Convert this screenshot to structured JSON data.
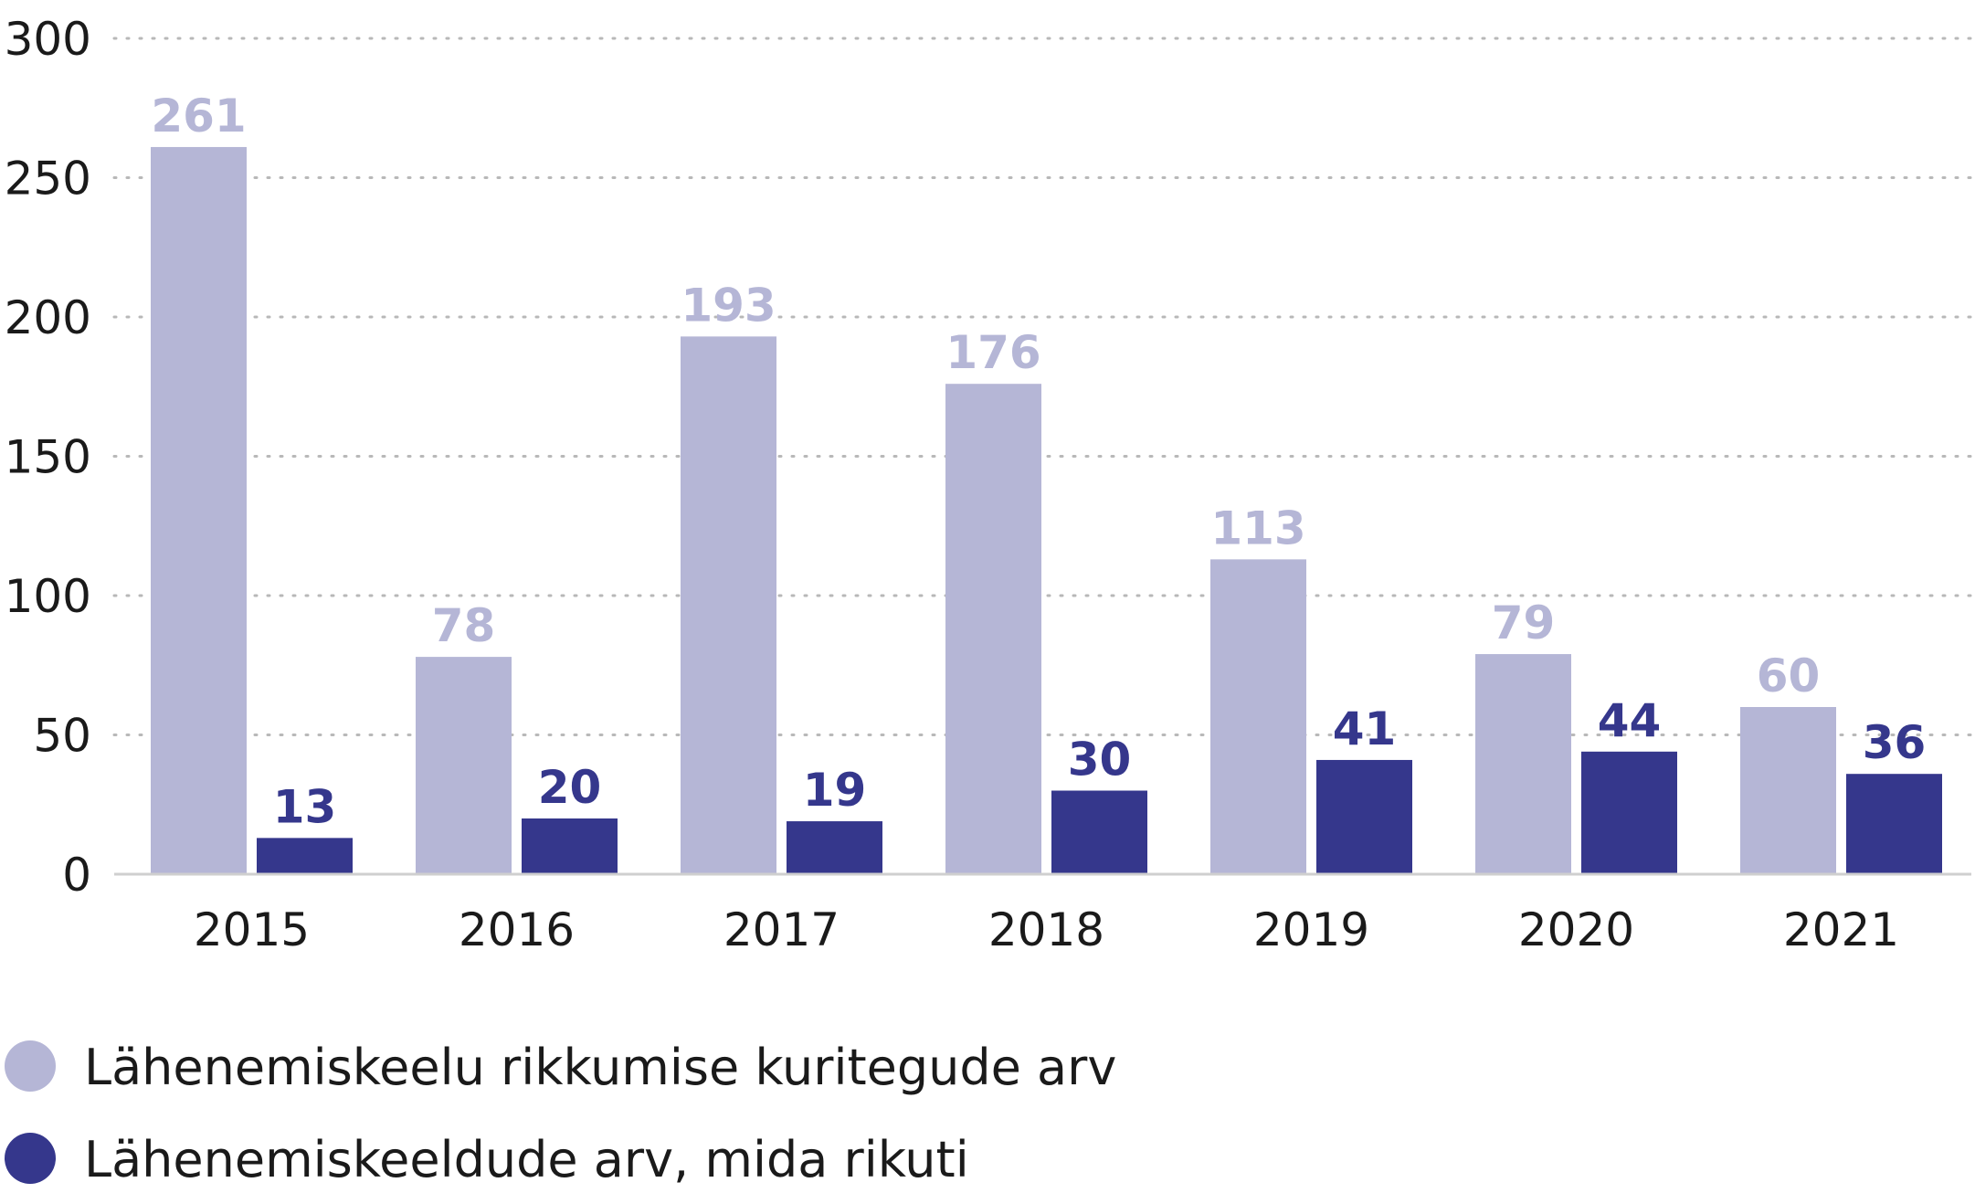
{
  "chart_data": {
    "type": "bar",
    "title": "",
    "xlabel": "",
    "ylabel": "",
    "categories": [
      "2015",
      "2016",
      "2017",
      "2018",
      "2019",
      "2020",
      "2021"
    ],
    "series": [
      {
        "name": "Lähenemiskeelu rikkumise kuritegude arv",
        "color": "#b5b6d6",
        "values": [
          261,
          78,
          193,
          176,
          113,
          79,
          60
        ]
      },
      {
        "name": "Lähenemiskeeldude arv, mida rikuti",
        "color": "#35378c",
        "values": [
          13,
          20,
          19,
          30,
          41,
          44,
          36
        ]
      }
    ],
    "ylim": [
      0,
      300
    ],
    "yticks": [
      0,
      50,
      100,
      150,
      200,
      250,
      300
    ],
    "grid": true,
    "legend_position": "bottom-left",
    "data_labels": true
  }
}
